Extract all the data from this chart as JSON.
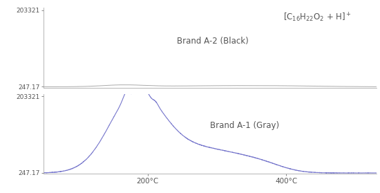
{
  "title_formula": "[C$_{16}$H$_{22}$O$_{2}$ + H]$^+$",
  "label_top": "Brand A-2 (Black)",
  "label_bottom": "Brand A-1 (Gray)",
  "ytick_top": 203321,
  "ytick_bottom": 247.17,
  "xticks": [
    200,
    400
  ],
  "xlim": [
    50,
    530
  ],
  "line_color_top": "#aaaaaa",
  "line_color_bottom": "#7777cc",
  "bg_color": "#ffffff",
  "axes_color": "#aaaaaa",
  "text_color": "#555555",
  "ymax": 210000,
  "ymin": -2000
}
